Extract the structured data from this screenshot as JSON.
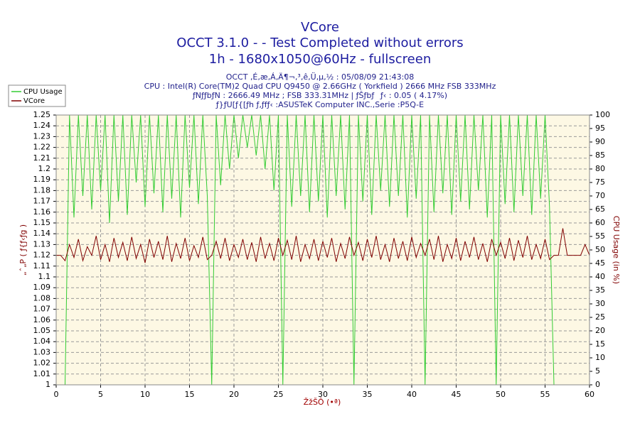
{
  "chart_data": {
    "type": "line",
    "title": "VCore",
    "subtitle": [
      "OCCT 3.1.0 -  - Test Completed without errors",
      "1h - 1680x1050@60Hz - fullscreen"
    ],
    "info": [
      "OCCT ‚É‚æ‚Á‚Ä¶¬‚³‚ê‚Ü‚µ‚½ : 05/08/09 21:43:08",
      "CPU : Intel(R) Core(TM)2 Quad CPU Q9450 @ 2.66GHz ( Yorkfield ) 2666 MHz FSB 333MHz",
      "ƒNƒƒbƒN : 2666.49 MHz ; FSB 333.31MHz | ƒŠƒbƒƒ‹ : 0.05 ( 4.17%)",
      "ƒ}ƒU[ƒ{[ƒh ƒ‚ƒfƒ‹ :ASUSTeK Computer INC.,Serie :P5Q-E"
    ],
    "xlabel": "ŽžŠÔ (•ª)",
    "ylabel": "„ˆ„P ( ƒ{ƒ‹ƒg )",
    "y2label": "CPU Usage (in %)",
    "x": [
      0,
      0.5,
      1,
      1.5,
      2,
      2.5,
      3,
      3.5,
      4,
      4.5,
      5,
      5.5,
      6,
      6.5,
      7,
      7.5,
      8,
      8.5,
      9,
      9.5,
      10,
      10.5,
      11,
      11.5,
      12,
      12.5,
      13,
      13.5,
      14,
      14.5,
      15,
      15.5,
      16,
      16.5,
      17,
      17.5,
      18,
      18.5,
      19,
      19.5,
      20,
      20.5,
      21,
      21.5,
      22,
      22.5,
      23,
      23.5,
      24,
      24.5,
      25,
      25.5,
      26,
      26.5,
      27,
      27.5,
      28,
      28.5,
      29,
      29.5,
      30,
      30.5,
      31,
      31.5,
      32,
      32.5,
      33,
      33.5,
      34,
      34.5,
      35,
      35.5,
      36,
      36.5,
      37,
      37.5,
      38,
      38.5,
      39,
      39.5,
      40,
      40.5,
      41,
      41.5,
      42,
      42.5,
      43,
      43.5,
      44,
      44.5,
      45,
      45.5,
      46,
      46.5,
      47,
      47.5,
      48,
      48.5,
      49,
      49.5,
      50,
      50.5,
      51,
      51.5,
      52,
      52.5,
      53,
      53.5,
      54,
      54.5,
      55,
      55.5,
      56,
      56.5,
      57,
      57.5,
      58,
      58.5,
      59,
      59.5,
      60
    ],
    "series": [
      {
        "name": "CPU Usage",
        "color": "#33cc33",
        "axis": "y2",
        "values": [
          0,
          0,
          0,
          100,
          62,
          100,
          70,
          100,
          65,
          100,
          72,
          100,
          60,
          100,
          68,
          100,
          63,
          100,
          75,
          100,
          66,
          100,
          71,
          100,
          64,
          100,
          69,
          100,
          62,
          100,
          73,
          100,
          67,
          100,
          70,
          0,
          100,
          74,
          100,
          80,
          100,
          84,
          100,
          88,
          100,
          85,
          100,
          80,
          100,
          72,
          100,
          0,
          100,
          66,
          100,
          70,
          100,
          64,
          100,
          68,
          100,
          62,
          100,
          70,
          100,
          65,
          100,
          0,
          100,
          68,
          100,
          63,
          100,
          72,
          100,
          66,
          100,
          70,
          100,
          62,
          100,
          69,
          100,
          0,
          100,
          64,
          100,
          71,
          100,
          63,
          100,
          68,
          100,
          65,
          100,
          72,
          100,
          62,
          100,
          0,
          100,
          67,
          100,
          64,
          100,
          70,
          100,
          63,
          100,
          69,
          100,
          66,
          0,
          0,
          0,
          0,
          0,
          0,
          0,
          0,
          0
        ]
      },
      {
        "name": "VCore",
        "color": "#800000",
        "values": [
          1.12,
          1.12,
          1.115,
          1.13,
          1.118,
          1.135,
          1.115,
          1.128,
          1.12,
          1.138,
          1.116,
          1.13,
          1.114,
          1.136,
          1.118,
          1.132,
          1.115,
          1.137,
          1.117,
          1.13,
          1.113,
          1.135,
          1.118,
          1.133,
          1.116,
          1.138,
          1.114,
          1.131,
          1.117,
          1.136,
          1.115,
          1.129,
          1.118,
          1.137,
          1.116,
          1.12,
          1.133,
          1.117,
          1.136,
          1.115,
          1.13,
          1.118,
          1.135,
          1.116,
          1.132,
          1.114,
          1.137,
          1.117,
          1.131,
          1.115,
          1.136,
          1.12,
          1.134,
          1.116,
          1.138,
          1.114,
          1.13,
          1.117,
          1.135,
          1.115,
          1.133,
          1.118,
          1.136,
          1.114,
          1.131,
          1.117,
          1.137,
          1.12,
          1.132,
          1.115,
          1.135,
          1.118,
          1.138,
          1.116,
          1.13,
          1.114,
          1.136,
          1.117,
          1.133,
          1.115,
          1.137,
          1.118,
          1.131,
          1.12,
          1.135,
          1.116,
          1.138,
          1.114,
          1.13,
          1.117,
          1.136,
          1.115,
          1.133,
          1.118,
          1.137,
          1.116,
          1.131,
          1.114,
          1.135,
          1.12,
          1.132,
          1.117,
          1.136,
          1.115,
          1.134,
          1.118,
          1.138,
          1.116,
          1.13,
          1.117,
          1.135,
          1.116,
          1.12,
          1.12,
          1.145,
          1.12,
          1.12,
          1.12,
          1.12,
          1.13,
          1.12
        ]
      }
    ],
    "xlim": [
      0,
      60
    ],
    "xticks": [
      0,
      5,
      10,
      15,
      20,
      25,
      30,
      35,
      40,
      45,
      50,
      55,
      60
    ],
    "ylim": [
      1,
      1.25
    ],
    "yticks": [
      1,
      1.01,
      1.02,
      1.03,
      1.04,
      1.05,
      1.06,
      1.07,
      1.08,
      1.09,
      1.1,
      1.11,
      1.12,
      1.13,
      1.14,
      1.15,
      1.16,
      1.17,
      1.18,
      1.19,
      1.2,
      1.21,
      1.22,
      1.23,
      1.24,
      1.25
    ],
    "y2lim": [
      0,
      100
    ],
    "y2ticks": [
      0,
      5,
      10,
      15,
      20,
      25,
      30,
      35,
      40,
      45,
      50,
      55,
      60,
      65,
      70,
      75,
      80,
      85,
      90,
      95,
      100
    ],
    "grid": true,
    "legend": "top-left"
  }
}
